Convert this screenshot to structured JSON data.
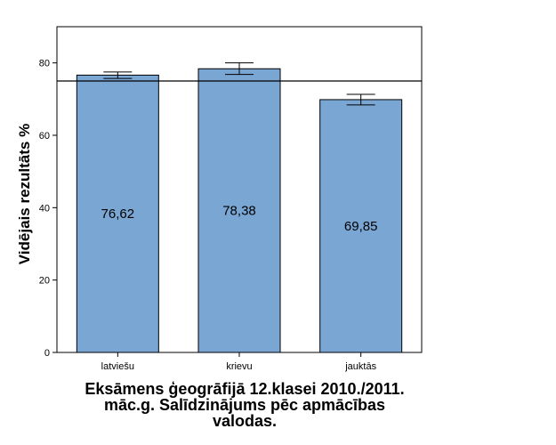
{
  "chart_data": {
    "type": "bar",
    "title": "Eksāmens ģeogrāfijā 12.klasei 2010./2011.\nmāc.g. Salīdzinājums pēc apmācības\nvalodas.",
    "xlabel": "",
    "ylabel": "Vidējais rezultāts %",
    "categories": [
      "latviešu",
      "krievu",
      "jauktās"
    ],
    "values": [
      76.62,
      78.38,
      69.85
    ],
    "value_labels": [
      "76,62",
      "78,38",
      "69,85"
    ],
    "error_bars": [
      {
        "low": 75.7,
        "high": 77.5
      },
      {
        "low": 76.8,
        "high": 80.0
      },
      {
        "low": 68.4,
        "high": 71.3
      }
    ],
    "reference_line": 75,
    "ylim": [
      0,
      90
    ],
    "yticks": [
      0,
      20,
      40,
      60,
      80
    ],
    "bar_color": "#7aa6d4",
    "grid": false,
    "legend": "none"
  }
}
